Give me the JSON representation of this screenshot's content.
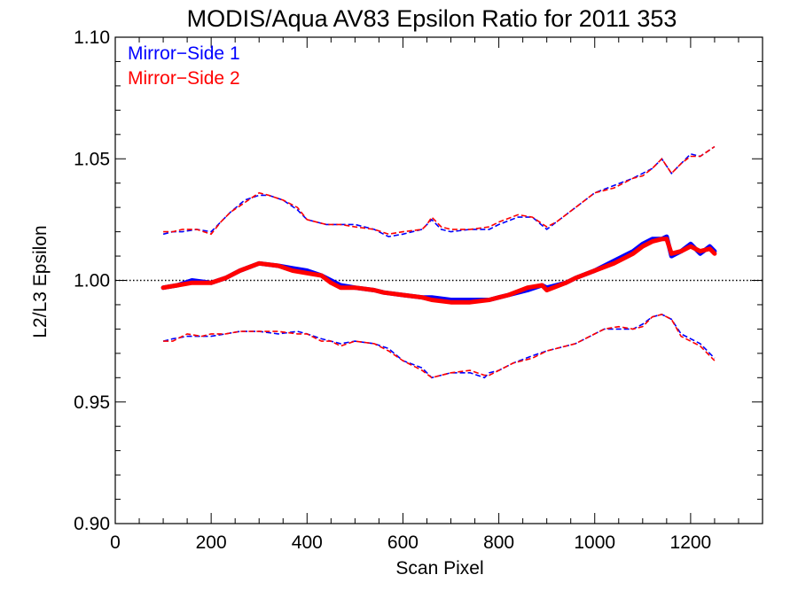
{
  "chart_data": {
    "type": "line",
    "title": "MODIS/Aqua AV83 Epsilon Ratio for 2011 353",
    "xlabel": "Scan Pixel",
    "ylabel": "L2/L3 Epsilon",
    "xlim": [
      0,
      1350
    ],
    "ylim": [
      0.9,
      1.1
    ],
    "x_ticks": [
      0,
      200,
      400,
      600,
      800,
      1000,
      1200
    ],
    "x_tick_labels": [
      "0",
      "200",
      "400",
      "600",
      "800",
      "1000",
      "1200"
    ],
    "y_ticks": [
      0.9,
      0.95,
      1.0,
      1.05,
      1.1
    ],
    "y_tick_labels": [
      "0.90",
      "0.95",
      "1.00",
      "1.05",
      "1.10"
    ],
    "reference_line": {
      "y": 1.0,
      "style": "dotted",
      "color": "#000000"
    },
    "legend": {
      "placement": "top-left",
      "entries": [
        "Mirror−Side 1",
        "Mirror−Side 2"
      ]
    },
    "series": [
      {
        "name": "Mirror−Side 1",
        "color": "#0000ff",
        "mean": {
          "x": [
            100,
            130,
            160,
            200,
            230,
            260,
            300,
            340,
            370,
            400,
            430,
            450,
            470,
            500,
            540,
            560,
            600,
            640,
            660,
            700,
            740,
            780,
            800,
            820,
            860,
            890,
            900,
            940,
            960,
            1000,
            1040,
            1080,
            1100,
            1120,
            1140,
            1150,
            1160,
            1180,
            1200,
            1220,
            1240,
            1250
          ],
          "y": [
            0.997,
            0.998,
            1.0,
            0.999,
            1.001,
            1.004,
            1.007,
            1.006,
            1.005,
            1.004,
            1.002,
            1.0,
            0.998,
            0.997,
            0.996,
            0.995,
            0.994,
            0.993,
            0.993,
            0.992,
            0.992,
            0.992,
            0.993,
            0.994,
            0.996,
            0.998,
            0.997,
            0.999,
            1.001,
            1.004,
            1.008,
            1.012,
            1.015,
            1.017,
            1.017,
            1.018,
            1.01,
            1.012,
            1.015,
            1.011,
            1.014,
            1.012
          ]
        },
        "upper": {
          "x": [
            100,
            120,
            140,
            170,
            200,
            220,
            240,
            270,
            300,
            320,
            350,
            380,
            400,
            440,
            470,
            500,
            540,
            570,
            600,
            640,
            650,
            660,
            680,
            700,
            740,
            780,
            800,
            840,
            870,
            900,
            920,
            960,
            1000,
            1040,
            1080,
            1100,
            1120,
            1140,
            1160,
            1180,
            1200,
            1220,
            1250
          ],
          "y": [
            1.019,
            1.02,
            1.02,
            1.021,
            1.02,
            1.024,
            1.028,
            1.033,
            1.035,
            1.035,
            1.033,
            1.029,
            1.025,
            1.023,
            1.023,
            1.023,
            1.021,
            1.018,
            1.019,
            1.021,
            1.023,
            1.025,
            1.021,
            1.02,
            1.021,
            1.021,
            1.023,
            1.026,
            1.026,
            1.021,
            1.024,
            1.03,
            1.036,
            1.039,
            1.042,
            1.044,
            1.046,
            1.05,
            1.044,
            1.048,
            1.052,
            1.051,
            1.055
          ]
        },
        "lower": {
          "x": [
            100,
            120,
            150,
            180,
            200,
            230,
            260,
            300,
            340,
            380,
            400,
            430,
            450,
            470,
            500,
            540,
            570,
            600,
            640,
            660,
            700,
            740,
            770,
            780,
            800,
            830,
            870,
            900,
            940,
            960,
            1000,
            1020,
            1050,
            1080,
            1100,
            1120,
            1140,
            1160,
            1180,
            1200,
            1220,
            1250
          ],
          "y": [
            0.975,
            0.976,
            0.977,
            0.977,
            0.977,
            0.978,
            0.979,
            0.979,
            0.978,
            0.979,
            0.978,
            0.976,
            0.975,
            0.974,
            0.975,
            0.974,
            0.972,
            0.967,
            0.964,
            0.96,
            0.962,
            0.962,
            0.96,
            0.962,
            0.963,
            0.966,
            0.969,
            0.971,
            0.973,
            0.974,
            0.978,
            0.98,
            0.98,
            0.98,
            0.982,
            0.985,
            0.986,
            0.984,
            0.978,
            0.976,
            0.974,
            0.968
          ]
        }
      },
      {
        "name": "Mirror−Side 2",
        "color": "#ff0000",
        "mean": {
          "x": [
            100,
            130,
            160,
            200,
            230,
            260,
            300,
            340,
            370,
            400,
            430,
            450,
            470,
            500,
            540,
            560,
            600,
            640,
            660,
            700,
            740,
            780,
            800,
            820,
            860,
            890,
            900,
            940,
            960,
            1000,
            1040,
            1080,
            1100,
            1120,
            1140,
            1150,
            1160,
            1180,
            1200,
            1220,
            1240,
            1250
          ],
          "y": [
            0.997,
            0.998,
            0.999,
            0.999,
            1.001,
            1.004,
            1.007,
            1.006,
            1.004,
            1.003,
            1.002,
            0.999,
            0.997,
            0.997,
            0.996,
            0.995,
            0.994,
            0.993,
            0.992,
            0.991,
            0.991,
            0.992,
            0.993,
            0.994,
            0.997,
            0.998,
            0.996,
            0.999,
            1.001,
            1.004,
            1.007,
            1.011,
            1.014,
            1.016,
            1.017,
            1.017,
            1.011,
            1.012,
            1.014,
            1.012,
            1.013,
            1.011
          ]
        },
        "upper": {
          "x": [
            100,
            120,
            140,
            170,
            200,
            220,
            240,
            270,
            300,
            320,
            350,
            380,
            400,
            440,
            470,
            500,
            540,
            570,
            600,
            640,
            650,
            660,
            680,
            700,
            740,
            780,
            800,
            840,
            870,
            900,
            920,
            960,
            1000,
            1040,
            1080,
            1100,
            1120,
            1140,
            1160,
            1180,
            1200,
            1220,
            1250
          ],
          "y": [
            1.02,
            1.02,
            1.021,
            1.021,
            1.019,
            1.024,
            1.028,
            1.032,
            1.036,
            1.035,
            1.033,
            1.03,
            1.025,
            1.023,
            1.023,
            1.022,
            1.021,
            1.019,
            1.02,
            1.021,
            1.023,
            1.026,
            1.022,
            1.021,
            1.021,
            1.022,
            1.024,
            1.027,
            1.026,
            1.022,
            1.024,
            1.03,
            1.036,
            1.038,
            1.042,
            1.043,
            1.046,
            1.05,
            1.044,
            1.048,
            1.051,
            1.051,
            1.055
          ]
        },
        "lower": {
          "x": [
            100,
            120,
            150,
            180,
            200,
            230,
            260,
            300,
            340,
            380,
            400,
            430,
            450,
            470,
            500,
            540,
            570,
            600,
            640,
            660,
            700,
            740,
            770,
            780,
            800,
            830,
            870,
            900,
            940,
            960,
            1000,
            1020,
            1050,
            1080,
            1100,
            1120,
            1140,
            1160,
            1180,
            1200,
            1220,
            1250
          ],
          "y": [
            0.975,
            0.975,
            0.978,
            0.977,
            0.978,
            0.978,
            0.979,
            0.979,
            0.979,
            0.978,
            0.978,
            0.975,
            0.975,
            0.973,
            0.975,
            0.974,
            0.971,
            0.967,
            0.963,
            0.96,
            0.962,
            0.963,
            0.961,
            0.961,
            0.963,
            0.966,
            0.968,
            0.971,
            0.973,
            0.974,
            0.978,
            0.98,
            0.981,
            0.98,
            0.981,
            0.985,
            0.986,
            0.984,
            0.977,
            0.975,
            0.973,
            0.967
          ]
        }
      }
    ]
  }
}
